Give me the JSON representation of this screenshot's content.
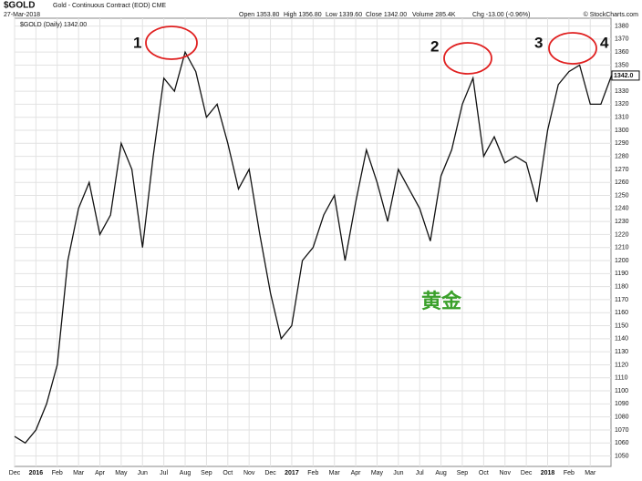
{
  "chart_data": {
    "type": "line",
    "title": "$GOLD",
    "subtitle": "Gold - Continuous Contract (EOD) CME",
    "date": "27-Mar-2018",
    "stats": [
      "Open 1353.80",
      "High 1356.80",
      "Low 1339.60",
      "Close 1342.00",
      "Volume 285.4K",
      "Chg -13.00 (-0.96%)"
    ],
    "credit": "© StockCharts.com",
    "last_label": "1342.0",
    "annotations": [
      "1",
      "2",
      "3",
      "4",
      "黄金"
    ],
    "categories": [
      "Dec",
      null,
      "2016",
      null,
      "Feb",
      null,
      "Mar",
      null,
      "Apr",
      null,
      "May",
      null,
      "Jun",
      null,
      "Jul",
      null,
      "Aug",
      null,
      "Sep",
      null,
      "Oct",
      null,
      "Nov",
      null,
      "Dec",
      null,
      "2017",
      null,
      "Feb",
      null,
      "Mar",
      null,
      "Apr",
      null,
      "May",
      null,
      "Jun",
      null,
      "Jul",
      null,
      "Aug",
      null,
      "Sep",
      null,
      "Oct",
      null,
      "Nov",
      null,
      "Dec",
      null,
      "2018",
      null,
      "Feb",
      null,
      "Mar",
      null,
      null
    ],
    "series": [
      {
        "name": "$GOLD (Daily) 1342.00",
        "color": "#111111",
        "values": [
          1065,
          1060,
          1070,
          1090,
          1120,
          1200,
          1240,
          1260,
          1220,
          1235,
          1290,
          1270,
          1210,
          1280,
          1340,
          1330,
          1360,
          1345,
          1310,
          1320,
          1290,
          1255,
          1270,
          1220,
          1175,
          1140,
          1150,
          1200,
          1210,
          1235,
          1250,
          1200,
          1245,
          1285,
          1260,
          1230,
          1270,
          1255,
          1240,
          1215,
          1265,
          1285,
          1320,
          1340,
          1280,
          1295,
          1275,
          1280,
          1275,
          1245,
          1300,
          1335,
          1345,
          1350,
          1320,
          1320,
          1342
        ]
      }
    ],
    "ylim": [
      1042,
      1386
    ],
    "yticks": [
      1050,
      1060,
      1070,
      1080,
      1090,
      1100,
      1110,
      1120,
      1130,
      1140,
      1150,
      1160,
      1170,
      1180,
      1190,
      1200,
      1210,
      1220,
      1230,
      1240,
      1250,
      1260,
      1270,
      1280,
      1290,
      1300,
      1310,
      1320,
      1330,
      1340,
      1350,
      1360,
      1370,
      1380
    ],
    "grid": true
  }
}
